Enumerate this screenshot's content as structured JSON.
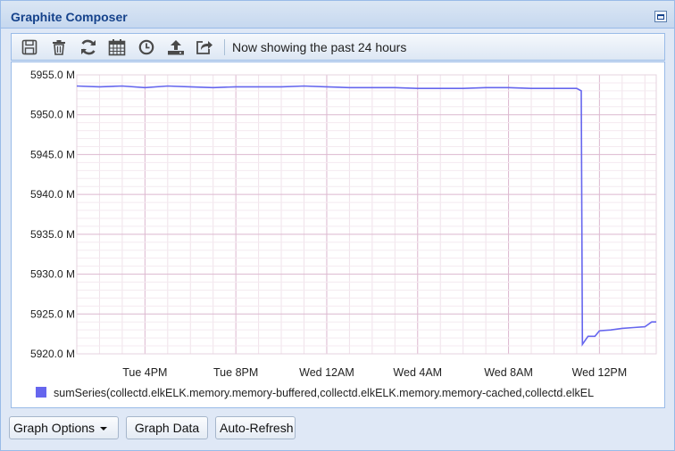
{
  "window": {
    "title": "Graphite Composer"
  },
  "toolbar": {
    "icons": [
      "save-icon",
      "delete-icon",
      "refresh-icon",
      "calendar-icon",
      "clock-icon",
      "upload-icon",
      "share-icon"
    ],
    "status": "Now showing the past 24 hours"
  },
  "buttons": {
    "graph_options": "Graph Options",
    "graph_data": "Graph Data",
    "auto_refresh": "Auto-Refresh"
  },
  "chart_data": {
    "type": "line",
    "title": "",
    "xlabel": "",
    "ylabel": "",
    "ylim": [
      5920.0,
      5955.0
    ],
    "y_ticks": [
      "5955.0 M",
      "5950.0 M",
      "5945.0 M",
      "5940.0 M",
      "5935.0 M",
      "5930.0 M",
      "5925.0 M",
      "5920.0 M"
    ],
    "x_tick_labels": [
      "Tue  4PM",
      "Tue  8PM",
      "Wed 12AM",
      "Wed  4AM",
      "Wed  8AM",
      "Wed 12PM"
    ],
    "x_range_hours": [
      13.0,
      15.5
    ],
    "x_label_hours": [
      16,
      20,
      24,
      28,
      32,
      36
    ],
    "grid": true,
    "legend_placement": "bottom",
    "series": [
      {
        "name": "sumSeries(collectd.elkELK.memory.memory-buffered,collectd.elkELK.memory.memory-cached,collectd.elkEL",
        "color": "#6666ee",
        "x_hours": [
          13.0,
          14.0,
          15.0,
          16.0,
          17.0,
          18.0,
          19.0,
          20.0,
          21.0,
          22.0,
          23.0,
          24.0,
          25.0,
          26.0,
          27.0,
          28.0,
          29.0,
          30.0,
          31.0,
          32.0,
          33.0,
          34.0,
          35.0,
          35.2,
          35.25,
          35.5,
          35.8,
          36.0,
          36.5,
          37.0,
          37.5,
          38.0,
          38.3,
          38.5
        ],
        "y_values": [
          5953.6,
          5953.5,
          5953.6,
          5953.4,
          5953.6,
          5953.5,
          5953.4,
          5953.5,
          5953.5,
          5953.5,
          5953.6,
          5953.5,
          5953.4,
          5953.4,
          5953.4,
          5953.3,
          5953.3,
          5953.3,
          5953.4,
          5953.4,
          5953.3,
          5953.3,
          5953.3,
          5953.0,
          5921.2,
          5922.2,
          5922.2,
          5922.9,
          5923.0,
          5923.2,
          5923.3,
          5923.4,
          5924.0,
          5924.0
        ]
      }
    ]
  }
}
